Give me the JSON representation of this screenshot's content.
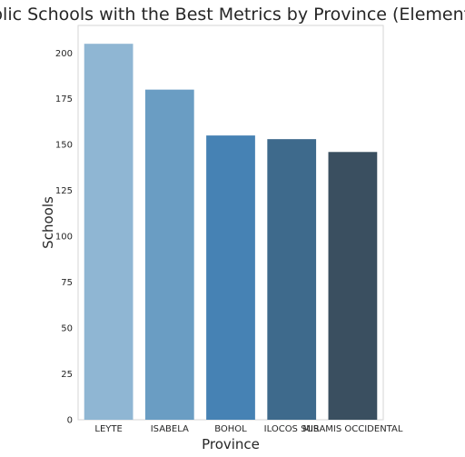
{
  "chart_data": {
    "type": "bar",
    "title": "Public Schools with the Best Metrics by Province (Elementary)",
    "xlabel": "Province",
    "ylabel": "Schools",
    "categories": [
      "LEYTE",
      "ISABELA",
      "BOHOL",
      "ILOCOS SUR",
      "MISAMIS OCCIDENTAL"
    ],
    "values": [
      205,
      180,
      155,
      153,
      146
    ],
    "ylim": [
      0,
      215
    ],
    "yticks": [
      0,
      25,
      50,
      75,
      100,
      125,
      150,
      175,
      200
    ],
    "colors": [
      "#8fb6d3",
      "#6a9dc3",
      "#4682b4",
      "#3e6a8c",
      "#3a4f60"
    ],
    "grid": false,
    "legend": "none"
  }
}
